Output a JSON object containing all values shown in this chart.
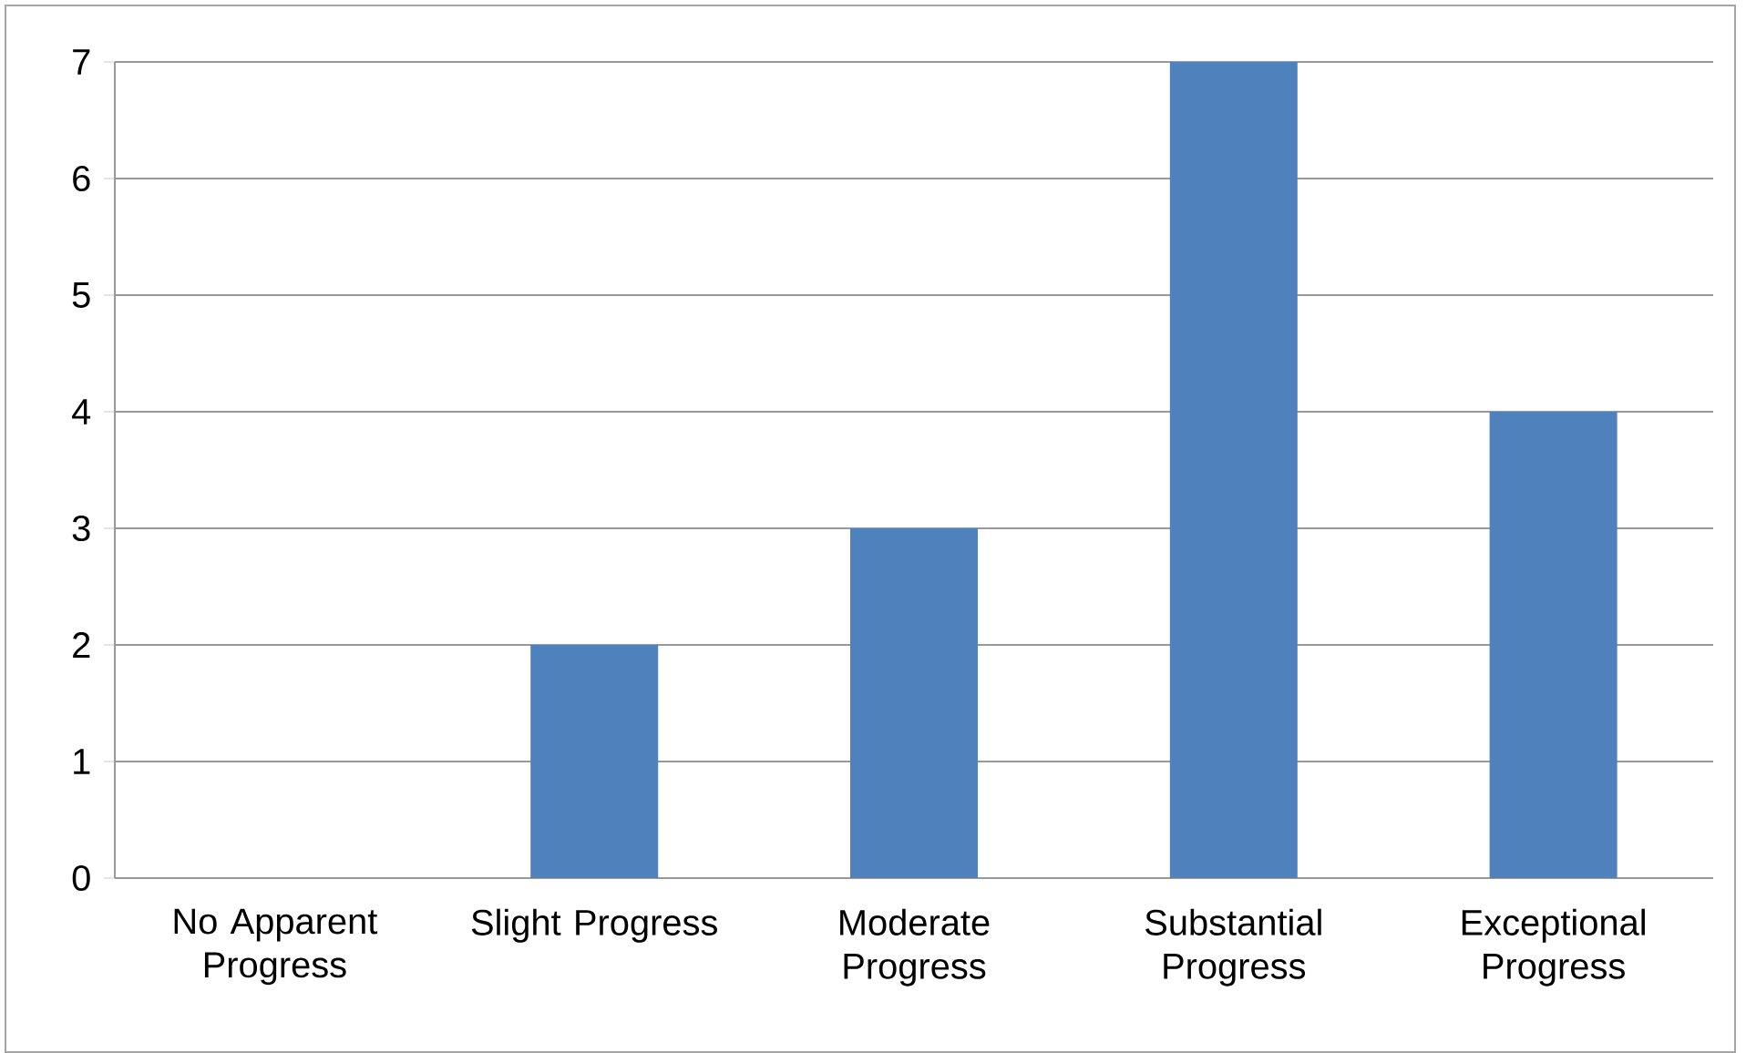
{
  "chart_data": {
    "type": "bar",
    "categories": [
      "No Apparent Progress",
      "Slight Progress",
      "Moderate Progress",
      "Substantial Progress",
      "Exceptional Progress"
    ],
    "values": [
      0,
      2,
      3,
      7,
      4
    ],
    "color": "#4f81bd",
    "ylim": [
      0,
      7
    ],
    "yticks": [
      0,
      1,
      2,
      3,
      4,
      5,
      6,
      7
    ],
    "grid": "y"
  }
}
